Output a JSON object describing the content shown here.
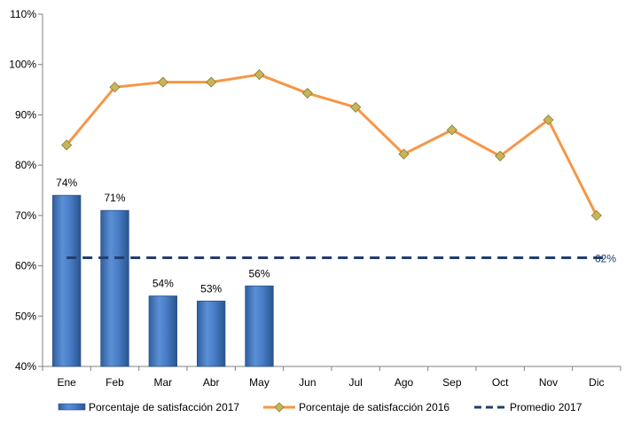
{
  "chart_data": {
    "type": "bar",
    "categories": [
      "Ene",
      "Feb",
      "Mar",
      "Abr",
      "May",
      "Jun",
      "Jul",
      "Ago",
      "Sep",
      "Oct",
      "Nov",
      "Dic"
    ],
    "ylim": [
      0.4,
      1.1
    ],
    "yticks": [
      0.4,
      0.5,
      0.6,
      0.7,
      0.8,
      0.9,
      1.0,
      1.1
    ],
    "ytick_labels": [
      "40%",
      "50%",
      "60%",
      "70%",
      "80%",
      "90%",
      "100%",
      "110%"
    ],
    "grid": false,
    "legend_position": "bottom",
    "series": [
      {
        "name": "Porcentaje de satisfacción 2017",
        "type": "bar",
        "color": "#4a7fc8",
        "values": [
          0.74,
          0.71,
          0.54,
          0.53,
          0.56,
          null,
          null,
          null,
          null,
          null,
          null,
          null
        ],
        "data_labels": [
          "74%",
          "71%",
          "54%",
          "53%",
          "56%"
        ]
      },
      {
        "name": "Porcentaje de satisfacción 2016",
        "type": "line",
        "color": "#f79646",
        "marker_color": "#c8b45a",
        "values": [
          0.84,
          0.955,
          0.965,
          0.965,
          0.98,
          0.943,
          0.915,
          0.822,
          0.87,
          0.818,
          0.89,
          0.7
        ]
      },
      {
        "name": "Promedio 2017",
        "type": "dashed-line",
        "color": "#1f3f6e",
        "value": 0.616,
        "label": "62%"
      }
    ]
  }
}
